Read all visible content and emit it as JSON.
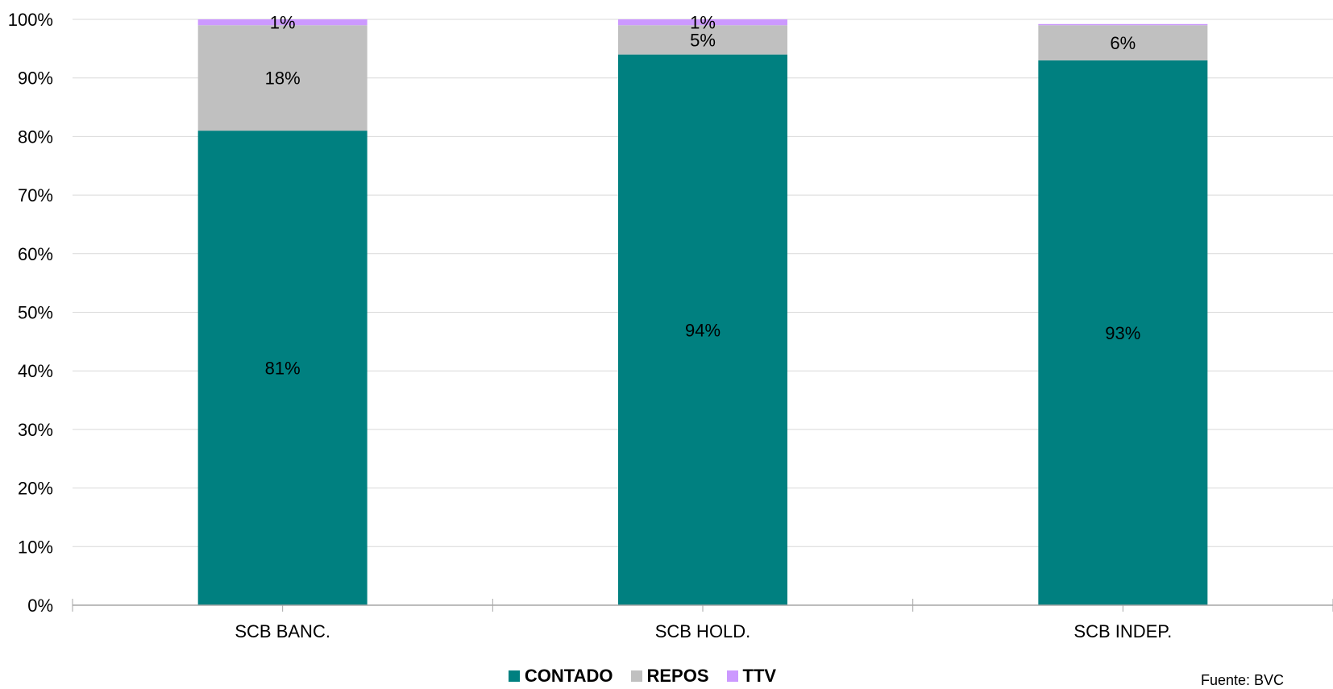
{
  "chart_data": {
    "type": "bar",
    "stacked": true,
    "percent_stacked": true,
    "categories": [
      "SCB BANC.",
      "SCB HOLD.",
      "SCB INDEP."
    ],
    "series": [
      {
        "name": "CONTADO",
        "color": "#008080",
        "values": [
          81,
          94,
          93
        ],
        "labels": [
          "81%",
          "94%",
          "93%"
        ]
      },
      {
        "name": "REPOS",
        "color": "#C0C0C0",
        "values": [
          18,
          5,
          6
        ],
        "labels": [
          "18%",
          "5%",
          "6%"
        ]
      },
      {
        "name": "TTV",
        "color": "#CC99FF",
        "values": [
          1,
          1,
          0.2
        ],
        "labels": [
          "1%",
          "1%",
          ""
        ]
      }
    ],
    "ylim": [
      0,
      100
    ],
    "yticks": [
      "0%",
      "10%",
      "20%",
      "30%",
      "40%",
      "50%",
      "60%",
      "70%",
      "80%",
      "90%",
      "100%"
    ],
    "grid": true,
    "legend_position": "bottom",
    "title": "",
    "xlabel": "",
    "ylabel": ""
  },
  "source_note": "Fuente: BVC"
}
